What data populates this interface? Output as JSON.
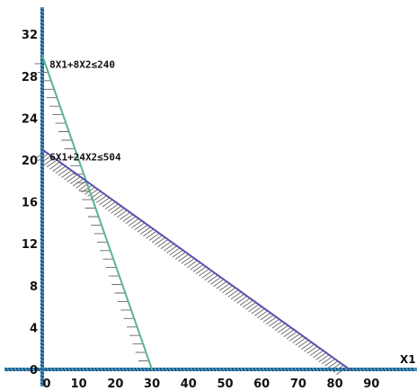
{
  "chart_data": {
    "type": "line",
    "xlabel": "X1",
    "ylabel": "",
    "xlim": [
      0,
      95
    ],
    "ylim": [
      -2,
      33
    ],
    "x_ticks": [
      0,
      10,
      20,
      30,
      40,
      50,
      60,
      70,
      80,
      90
    ],
    "y_ticks": [
      0,
      4,
      8,
      12,
      16,
      20,
      24,
      28,
      32
    ],
    "grid": false,
    "series": [
      {
        "name": "8X1+8X2≤240",
        "points": [
          [
            0,
            30
          ],
          [
            30,
            0
          ]
        ],
        "color": "#5ab58a",
        "hatch_side": "below-left"
      },
      {
        "name": "6X1+24X2≤504",
        "points": [
          [
            0,
            21
          ],
          [
            84,
            0
          ]
        ],
        "color": "#5a4fb0",
        "hatch_side": "below-left"
      }
    ]
  },
  "annotations": [
    {
      "text": "8X1+8X2≤240",
      "x": 2,
      "y": 30
    },
    {
      "text": "6X1+24X2≤504",
      "x": 3,
      "y": 21
    }
  ],
  "colors": {
    "axis": "#3a90c8",
    "axis_hatch": "#1a1a1a",
    "hatch": "#666666"
  }
}
